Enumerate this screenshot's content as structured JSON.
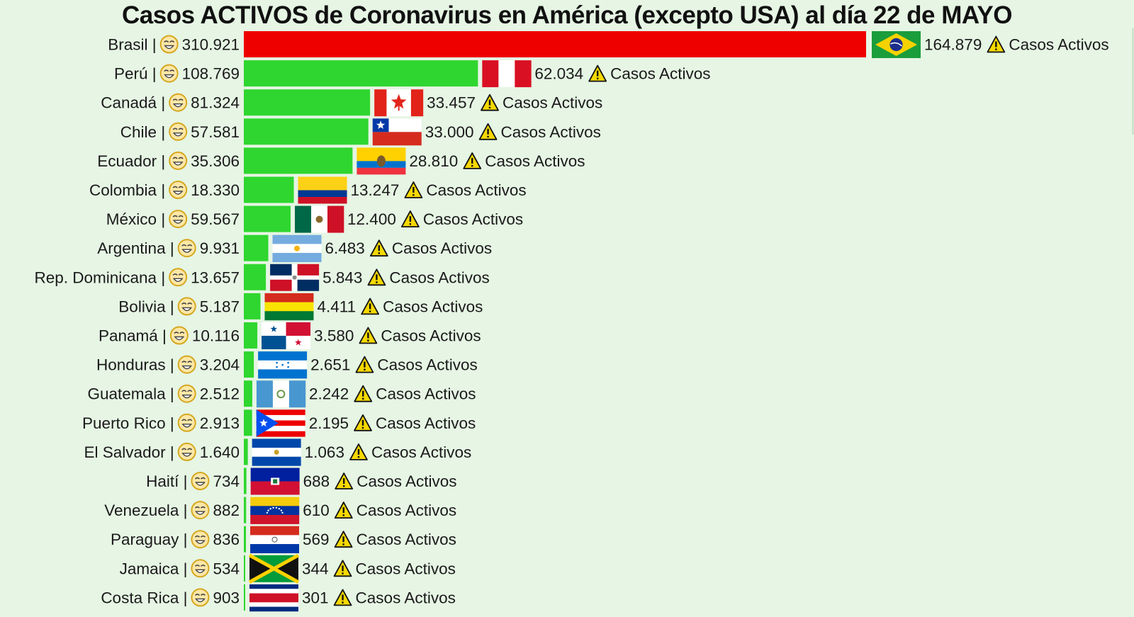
{
  "chart_data": {
    "type": "bar",
    "title": "Casos ACTIVOS de Coronavirus en América (excepto USA) al día 22 de MAYO",
    "value_suffix": "Casos Activos",
    "separator": "|",
    "left_icon": "smiling-face-icon",
    "right_icon": "warning-icon",
    "colors": {
      "leader_bar": "#ee0000",
      "bar": "#2fd62f",
      "background": "#e6f5e4",
      "warning": "#f5d800"
    },
    "rows": [
      {
        "country": "Brasil",
        "left_value": "310.921",
        "active": 164879,
        "active_label": "164.879",
        "flag": "brazil"
      },
      {
        "country": "Perú",
        "left_value": "108.769",
        "active": 62034,
        "active_label": "62.034",
        "flag": "peru"
      },
      {
        "country": "Canadá",
        "left_value": "81.324",
        "active": 33457,
        "active_label": "33.457",
        "flag": "canada"
      },
      {
        "country": "Chile",
        "left_value": "57.581",
        "active": 33000,
        "active_label": "33.000",
        "flag": "chile"
      },
      {
        "country": "Ecuador",
        "left_value": "35.306",
        "active": 28810,
        "active_label": "28.810",
        "flag": "ecuador"
      },
      {
        "country": "Colombia",
        "left_value": "18.330",
        "active": 13247,
        "active_label": "13.247",
        "flag": "colombia"
      },
      {
        "country": "México",
        "left_value": "59.567",
        "active": 12400,
        "active_label": "12.400",
        "flag": "mexico"
      },
      {
        "country": "Argentina",
        "left_value": "9.931",
        "active": 6483,
        "active_label": "6.483",
        "flag": "argentina"
      },
      {
        "country": "Rep. Dominicana",
        "left_value": "13.657",
        "active": 5843,
        "active_label": "5.843",
        "flag": "dominican-republic"
      },
      {
        "country": "Bolivia",
        "left_value": "5.187",
        "active": 4411,
        "active_label": "4.411",
        "flag": "bolivia"
      },
      {
        "country": "Panamá",
        "left_value": "10.116",
        "active": 3580,
        "active_label": "3.580",
        "flag": "panama"
      },
      {
        "country": "Honduras",
        "left_value": "3.204",
        "active": 2651,
        "active_label": "2.651",
        "flag": "honduras"
      },
      {
        "country": "Guatemala",
        "left_value": "2.512",
        "active": 2242,
        "active_label": "2.242",
        "flag": "guatemala"
      },
      {
        "country": "Puerto Rico",
        "left_value": "2.913",
        "active": 2195,
        "active_label": "2.195",
        "flag": "puerto-rico"
      },
      {
        "country": "El Salvador",
        "left_value": "1.640",
        "active": 1063,
        "active_label": "1.063",
        "flag": "el-salvador"
      },
      {
        "country": "Haití",
        "left_value": "734",
        "active": 688,
        "active_label": "688",
        "flag": "haiti"
      },
      {
        "country": "Venezuela",
        "left_value": "882",
        "active": 610,
        "active_label": "610",
        "flag": "venezuela"
      },
      {
        "country": "Paraguay",
        "left_value": "836",
        "active": 569,
        "active_label": "569",
        "flag": "paraguay"
      },
      {
        "country": "Jamaica",
        "left_value": "534",
        "active": 344,
        "active_label": "344",
        "flag": "jamaica"
      },
      {
        "country": "Costa Rica",
        "left_value": "903",
        "active": 301,
        "active_label": "301",
        "flag": "costa-rica"
      }
    ]
  }
}
